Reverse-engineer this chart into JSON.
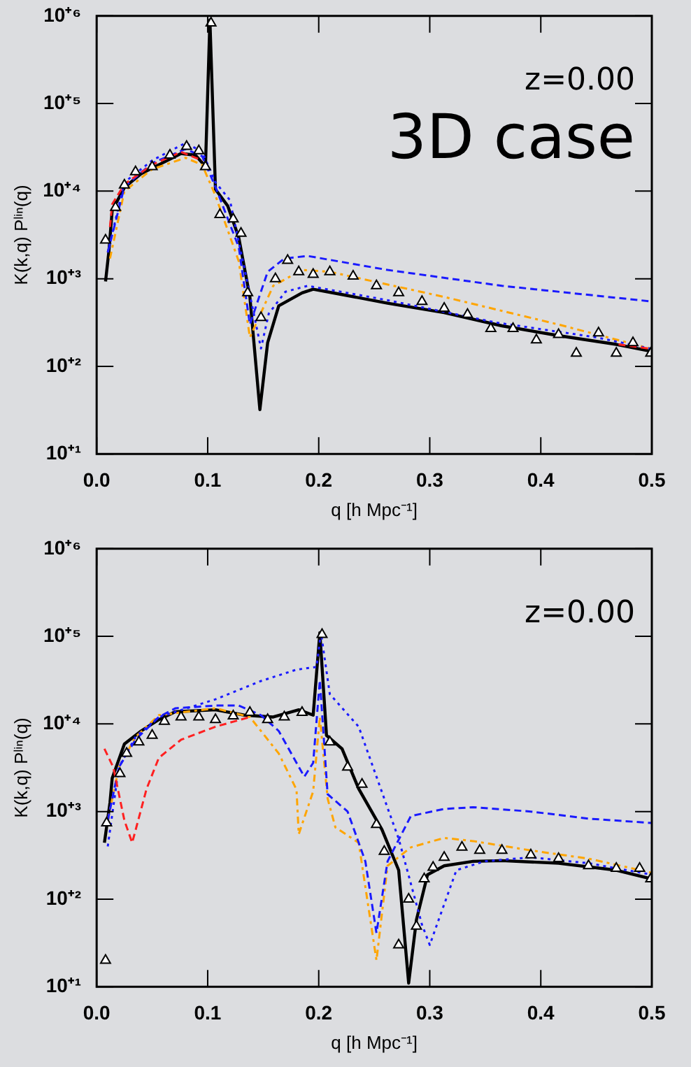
{
  "chart_data": [
    {
      "type": "line",
      "xlabel": "q [h Mpc⁻¹]",
      "ylabel": "K(k,q) Pˡⁱⁿ(q)",
      "annotations": [
        "z=0.00",
        "3D case"
      ],
      "log": "y",
      "xlim": [
        0,
        0.5
      ],
      "xticks": [
        {
          "value": 0,
          "label": "0.0"
        },
        {
          "value": 0.1,
          "label": "0.1"
        },
        {
          "value": 0.2,
          "label": "0.2"
        },
        {
          "value": 0.3,
          "label": "0.3"
        },
        {
          "value": 0.4,
          "label": "0.4"
        },
        {
          "value": 0.5,
          "label": "0.5"
        }
      ],
      "ylim": [
        10,
        1000000
      ],
      "yticks": [
        {
          "value": 10,
          "label": "10⁺¹"
        },
        {
          "value": 100,
          "label": "10⁺²"
        },
        {
          "value": 1000,
          "label": "10⁺³"
        },
        {
          "value": 10000,
          "label": "10⁺⁴"
        },
        {
          "value": 100000,
          "label": "10⁺⁵"
        },
        {
          "value": 1000000,
          "label": "10⁺⁶"
        }
      ],
      "series": [
        {
          "color": "#ff2020",
          "line_style": "dashed",
          "x": [
            0.012,
            0.014,
            0.025,
            0.05,
            0.076,
            0.095,
            0.1,
            0.47,
            0.5
          ],
          "values": [
            3900,
            7100,
            12000,
            20000,
            28000,
            22400,
            null,
            178,
            158
          ]
        },
        {
          "color": "#1a1aff",
          "line_style": "dashed",
          "x": [
            0.01,
            0.025,
            0.05,
            0.08,
            0.095,
            0.107,
            0.128,
            0.138,
            0.154,
            0.169,
            0.19,
            0.262,
            0.365,
            0.5
          ],
          "values": [
            2000,
            11200,
            20900,
            30200,
            25100,
            11200,
            2290,
            300,
            1200,
            1700,
            1820,
            1260,
            830,
            550
          ]
        },
        {
          "color": "#1a1aff",
          "line_style": "dotted",
          "x": [
            0.01,
            0.025,
            0.05,
            0.08,
            0.095,
            0.107,
            0.12,
            0.135,
            0.148,
            0.155,
            0.17,
            0.19,
            0.26,
            0.36,
            0.45,
            0.5
          ],
          "values": [
            2000,
            12600,
            22400,
            35500,
            28200,
            12600,
            7900,
            1000,
            160,
            400,
            710,
            830,
            575,
            316,
            214,
            158
          ]
        },
        {
          "color": "#ffa500",
          "line_style": "dashdot",
          "x": [
            0.012,
            0.025,
            0.05,
            0.08,
            0.095,
            0.107,
            0.128,
            0.138,
            0.159,
            0.185,
            0.21,
            0.313,
            0.416,
            0.5
          ],
          "values": [
            1700,
            10000,
            17800,
            24000,
            20000,
            8900,
            1580,
            214,
            830,
            1260,
            1200,
            620,
            300,
            158
          ]
        },
        {
          "color": "#000000",
          "line_style": "solid",
          "x": [
            0.008,
            0.011,
            0.014,
            0.025,
            0.04,
            0.056,
            0.076,
            0.089,
            0.098,
            0.102,
            0.107,
            0.118,
            0.128,
            0.138,
            0.147,
            0.154,
            0.164,
            0.185,
            0.195,
            0.221,
            0.262,
            0.313,
            0.365,
            0.416,
            0.468,
            0.5
          ],
          "values": [
            930,
            2040,
            6030,
            11000,
            15800,
            20000,
            26900,
            25700,
            19100,
            900000,
            10500,
            6800,
            2950,
            620,
            32,
            186,
            490,
            690,
            760,
            660,
            525,
            410,
            290,
            224,
            178,
            148
          ]
        },
        {
          "type": "scatter",
          "color": "#000000",
          "marker": "triangle",
          "x": [
            0.008,
            0.017,
            0.025,
            0.035,
            0.05,
            0.066,
            0.081,
            0.092,
            0.098,
            0.103,
            0.111,
            0.123,
            0.13,
            0.136
          ],
          "values": [
            2750,
            6500,
            11700,
            16600,
            19000,
            25700,
            32400,
            28800,
            19000,
            830000,
            5400,
            4800,
            3300,
            690
          ]
        },
        {
          "type": "scatter",
          "color": "#000000",
          "marker": "triangle",
          "x": [
            0.148,
            0.161,
            0.172,
            0.182,
            0.195,
            0.21,
            0.231,
            0.252,
            0.272,
            0.293,
            0.313,
            0.334,
            0.355,
            0.375,
            0.396,
            0.416,
            0.432,
            0.452,
            0.468,
            0.483,
            0.499
          ],
          "values": [
            360,
            1000,
            1620,
            1200,
            1120,
            1200,
            1070,
            830,
            690,
            550,
            460,
            390,
            270,
            270,
            200,
            230,
            141,
            240,
            141,
            186,
            141
          ]
        }
      ]
    },
    {
      "type": "line",
      "xlabel": "q [h Mpc⁻¹]",
      "ylabel": "K(k,q) Pˡⁱⁿ(q)",
      "annotations": [
        "z=0.00"
      ],
      "log": "y",
      "xlim": [
        0,
        0.5
      ],
      "xticks": [
        {
          "value": 0,
          "label": "0.0"
        },
        {
          "value": 0.1,
          "label": "0.1"
        },
        {
          "value": 0.2,
          "label": "0.2"
        },
        {
          "value": 0.3,
          "label": "0.3"
        },
        {
          "value": 0.4,
          "label": "0.4"
        },
        {
          "value": 0.5,
          "label": "0.5"
        }
      ],
      "ylim": [
        10,
        1000000
      ],
      "yticks": [
        {
          "value": 10,
          "label": "10⁺¹"
        },
        {
          "value": 100,
          "label": "10⁺²"
        },
        {
          "value": 1000,
          "label": "10⁺³"
        },
        {
          "value": 10000,
          "label": "10⁺⁴"
        },
        {
          "value": 100000,
          "label": "10⁺⁵"
        },
        {
          "value": 1000000,
          "label": "10⁺⁶"
        }
      ],
      "series": [
        {
          "color": "#ff2020",
          "line_style": "dashed",
          "x": [
            0.007,
            0.015,
            0.025,
            0.032,
            0.045,
            0.056,
            0.076,
            0.107,
            0.138
          ],
          "values": [
            5200,
            3200,
            790,
            440,
            1820,
            4100,
            6600,
            9300,
            12000
          ]
        },
        {
          "color": "#1a1aff",
          "line_style": "dashed",
          "x": [
            0.01,
            0.02,
            0.035,
            0.056,
            0.071,
            0.107,
            0.128,
            0.148,
            0.164,
            0.18,
            0.187,
            0.195,
            0.201,
            0.208,
            0.226,
            0.242,
            0.252,
            0.262,
            0.283,
            0.313,
            0.339,
            0.391,
            0.443,
            0.5
          ],
          "values": [
            790,
            3200,
            6600,
            12000,
            15100,
            16200,
            16200,
            12600,
            8300,
            3600,
            2500,
            3600,
            31600,
            1580,
            1000,
            270,
            41,
            270,
            890,
            1070,
            1120,
            1000,
            830,
            740
          ]
        },
        {
          "color": "#1a1aff",
          "line_style": "dotted",
          "x": [
            0.01,
            0.02,
            0.035,
            0.056,
            0.107,
            0.148,
            0.18,
            0.198,
            0.202,
            0.21,
            0.236,
            0.262,
            0.272,
            0.293,
            0.3,
            0.308,
            0.324,
            0.349,
            0.391,
            0.443,
            0.5
          ],
          "values": [
            400,
            3200,
            7100,
            12000,
            19100,
            30900,
            41700,
            44700,
            110000,
            21900,
            9300,
            1100,
            490,
            51,
            30,
            58,
            214,
            270,
            300,
            257,
            190
          ]
        },
        {
          "color": "#ffa500",
          "line_style": "dashdot",
          "x": [
            0.01,
            0.02,
            0.035,
            0.056,
            0.107,
            0.138,
            0.164,
            0.18,
            0.182,
            0.195,
            0.201,
            0.208,
            0.215,
            0.236,
            0.252,
            0.262,
            0.283,
            0.313,
            0.339,
            0.391,
            0.443,
            0.5
          ],
          "values": [
            790,
            3200,
            7100,
            12600,
            15100,
            12000,
            4600,
            1780,
            550,
            1700,
            12000,
            1410,
            660,
            440,
            20,
            240,
            390,
            500,
            460,
            360,
            290,
            200
          ]
        },
        {
          "color": "#000000",
          "line_style": "solid",
          "x": [
            0.007,
            0.012,
            0.014,
            0.025,
            0.04,
            0.056,
            0.071,
            0.107,
            0.133,
            0.159,
            0.182,
            0.195,
            0.201,
            0.207,
            0.221,
            0.236,
            0.257,
            0.272,
            0.281,
            0.288,
            0.298,
            0.313,
            0.339,
            0.365,
            0.416,
            0.468,
            0.5
          ],
          "values": [
            440,
            1260,
            2400,
            5900,
            8300,
            11200,
            13800,
            14500,
            12600,
            12000,
            14500,
            12600,
            110000,
            7400,
            5200,
            1820,
            620,
            214,
            11,
            58,
            190,
            240,
            270,
            275,
            257,
            214,
            170
          ]
        },
        {
          "type": "scatter",
          "color": "#000000",
          "marker": "triangle",
          "x": [
            0.008,
            0.009,
            0.021,
            0.027,
            0.038,
            0.05,
            0.061,
            0.076,
            0.092,
            0.107,
            0.123,
            0.138,
            0.154,
            0.169,
            0.185,
            0.203,
            0.21,
            0.226,
            0.239,
            0.252,
            0.259
          ],
          "values": [
            20,
            740,
            2700,
            4600,
            6200,
            7400,
            10700,
            12000,
            12000,
            11200,
            12300,
            13500,
            11200,
            12000,
            13500,
            105000,
            6200,
            3200,
            2040,
            710,
            350
          ]
        },
        {
          "type": "scatter",
          "color": "#000000",
          "marker": "triangle",
          "x": [
            0.272,
            0.281,
            0.288,
            0.295,
            0.303,
            0.313,
            0.329,
            0.345,
            0.365,
            0.391,
            0.416,
            0.443,
            0.468,
            0.489,
            0.499
          ],
          "values": [
            30,
            100,
            49,
            170,
            230,
            300,
            390,
            360,
            360,
            320,
            290,
            240,
            224,
            224,
            170
          ]
        }
      ]
    }
  ]
}
